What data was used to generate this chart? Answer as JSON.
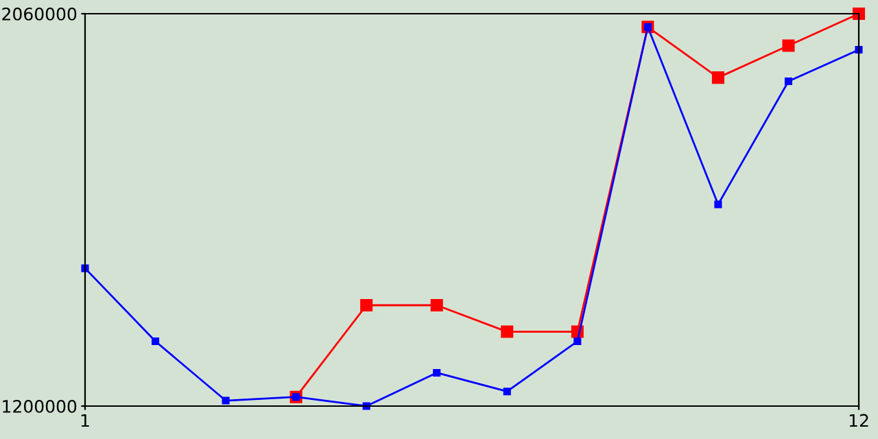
{
  "chart_data": {
    "type": "line",
    "x": [
      1,
      2,
      3,
      4,
      5,
      6,
      7,
      8,
      9,
      10,
      11,
      12
    ],
    "series": [
      {
        "color": "#ff0000",
        "values": [
          null,
          null,
          null,
          1220000,
          1421000,
          1421000,
          1363000,
          1363000,
          2031000,
          1920000,
          1990000,
          2060000
        ]
      },
      {
        "color": "#0000ff",
        "values": [
          1502000,
          1342000,
          1212000,
          1220000,
          1200000,
          1273000,
          1232000,
          1342000,
          2031000,
          1642000,
          1912000,
          1981000
        ]
      }
    ],
    "xlim": [
      1,
      12
    ],
    "xticks": [
      1,
      12
    ],
    "ylim": [
      1200000,
      2060000
    ],
    "yticks": [
      1200000,
      2060000
    ],
    "marker": "square",
    "grid": false,
    "legend": false
  }
}
